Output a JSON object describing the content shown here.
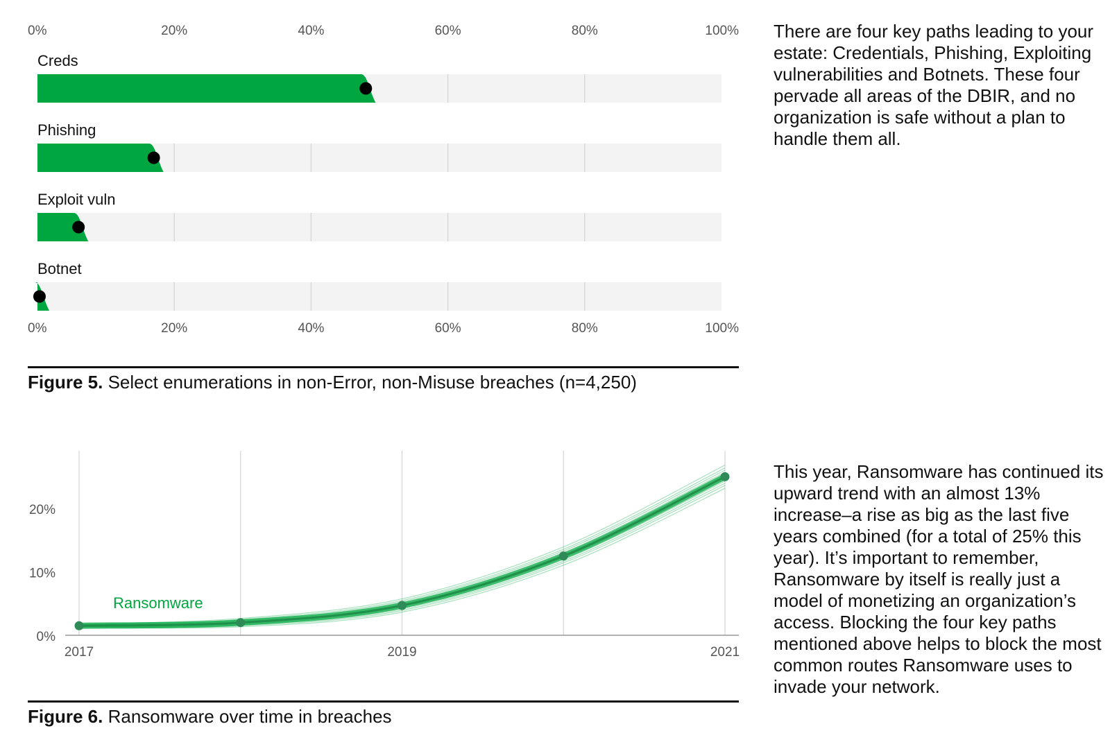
{
  "figure5": {
    "caption_label": "Figure 5.",
    "caption_text": "Select enumerations in non-Error, non-Misuse breaches (n=4,250)",
    "description": "There are four key paths leading to your estate: Credentials, Phishing, Exploiting vulnerabilities and Botnets. These four pervade all areas of the DBIR, and no organization is safe without a plan to handle them all."
  },
  "figure6": {
    "caption_label": "Figure 6.",
    "caption_text": "Ransomware over time in breaches",
    "description": "This year, Ransomware has continued its upward trend with an almost 13% increase–a rise as big as the last five years combined (for a total of 25% this year). It’s important to remember, Ransomware by itself is really just a model of monetizing an organization’s access. Blocking the four key paths mentioned above helps to block the most common routes Ransomware uses to invade your network."
  },
  "colors": {
    "accent": "#00a63f",
    "track": "#f3f3f3",
    "dot": "#000000",
    "grid": "#d4d4d4"
  },
  "chart_data": [
    {
      "type": "bar",
      "orientation": "horizontal",
      "categories": [
        "Creds",
        "Phishing",
        "Exploit vuln",
        "Botnet"
      ],
      "values": [
        48,
        17,
        6,
        0.3
      ],
      "x_ticks": [
        "0%",
        "20%",
        "40%",
        "60%",
        "80%",
        "100%"
      ],
      "xlim": [
        0,
        100
      ],
      "grid": true
    },
    {
      "type": "line",
      "series": [
        {
          "name": "Ransomware",
          "x": [
            2017,
            2018,
            2019,
            2020,
            2021
          ],
          "values": [
            1.5,
            2,
            4.7,
            12.5,
            25
          ]
        }
      ],
      "x_ticks": [
        "2017",
        "2019",
        "2021"
      ],
      "y_ticks": [
        "0%",
        "10%",
        "20%"
      ],
      "xlim": [
        2017,
        2021
      ],
      "ylim": [
        0,
        28
      ],
      "grid": true
    }
  ]
}
